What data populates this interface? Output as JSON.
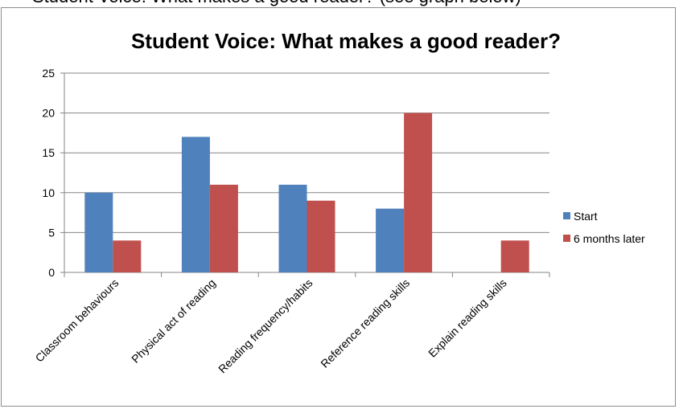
{
  "page": {
    "top_text": "Student Voice: What makes a good reader? (see graph below)"
  },
  "colors": {
    "start": "#4f81bd",
    "later": "#c0504d",
    "grid": "#868686",
    "axis": "#868686"
  },
  "chart_data": {
    "type": "bar",
    "title": "Student Voice: What makes a good reader?",
    "xlabel": "",
    "ylabel": "",
    "ylim": [
      0,
      25
    ],
    "yticks": [
      0,
      5,
      10,
      15,
      20,
      25
    ],
    "grid": true,
    "legend_position": "right",
    "categories": [
      "Classroom behaviours",
      "Physical act of reading",
      "Reading frequency/habits",
      "Reference reading skills",
      "Explain reading skills"
    ],
    "series": [
      {
        "name": "Start",
        "values": [
          10,
          17,
          11,
          8,
          0
        ]
      },
      {
        "name": "6 months later",
        "values": [
          4,
          11,
          9,
          20,
          4
        ]
      }
    ]
  }
}
